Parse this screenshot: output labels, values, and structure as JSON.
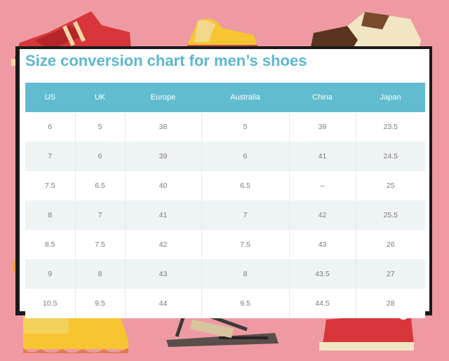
{
  "title": "Size conversion chart for men’s shoes",
  "headers": [
    "US",
    "UK",
    "Europe",
    "Australia",
    "China",
    "Japan"
  ],
  "rows": [
    [
      "6",
      "5",
      "38",
      "5",
      "39",
      "23.5"
    ],
    [
      "7",
      "6",
      "39",
      "6",
      "41",
      "24.5"
    ],
    [
      "7.5",
      "6.5",
      "40",
      "6.5",
      "–",
      "25"
    ],
    [
      "8",
      "7",
      "41",
      "7",
      "42",
      "25.5"
    ],
    [
      "8.5",
      "7.5",
      "42",
      "7.5",
      "43",
      "26"
    ],
    [
      "9",
      "8",
      "43",
      "8",
      "43.5",
      "27"
    ],
    [
      "10.5",
      "9.5",
      "44",
      "9.5",
      "44.5",
      "28"
    ]
  ],
  "colors": {
    "background": "#ef9aa2",
    "header": "#62bcd0",
    "title": "#5bb7cf",
    "row_alt": "#eef3f5"
  }
}
